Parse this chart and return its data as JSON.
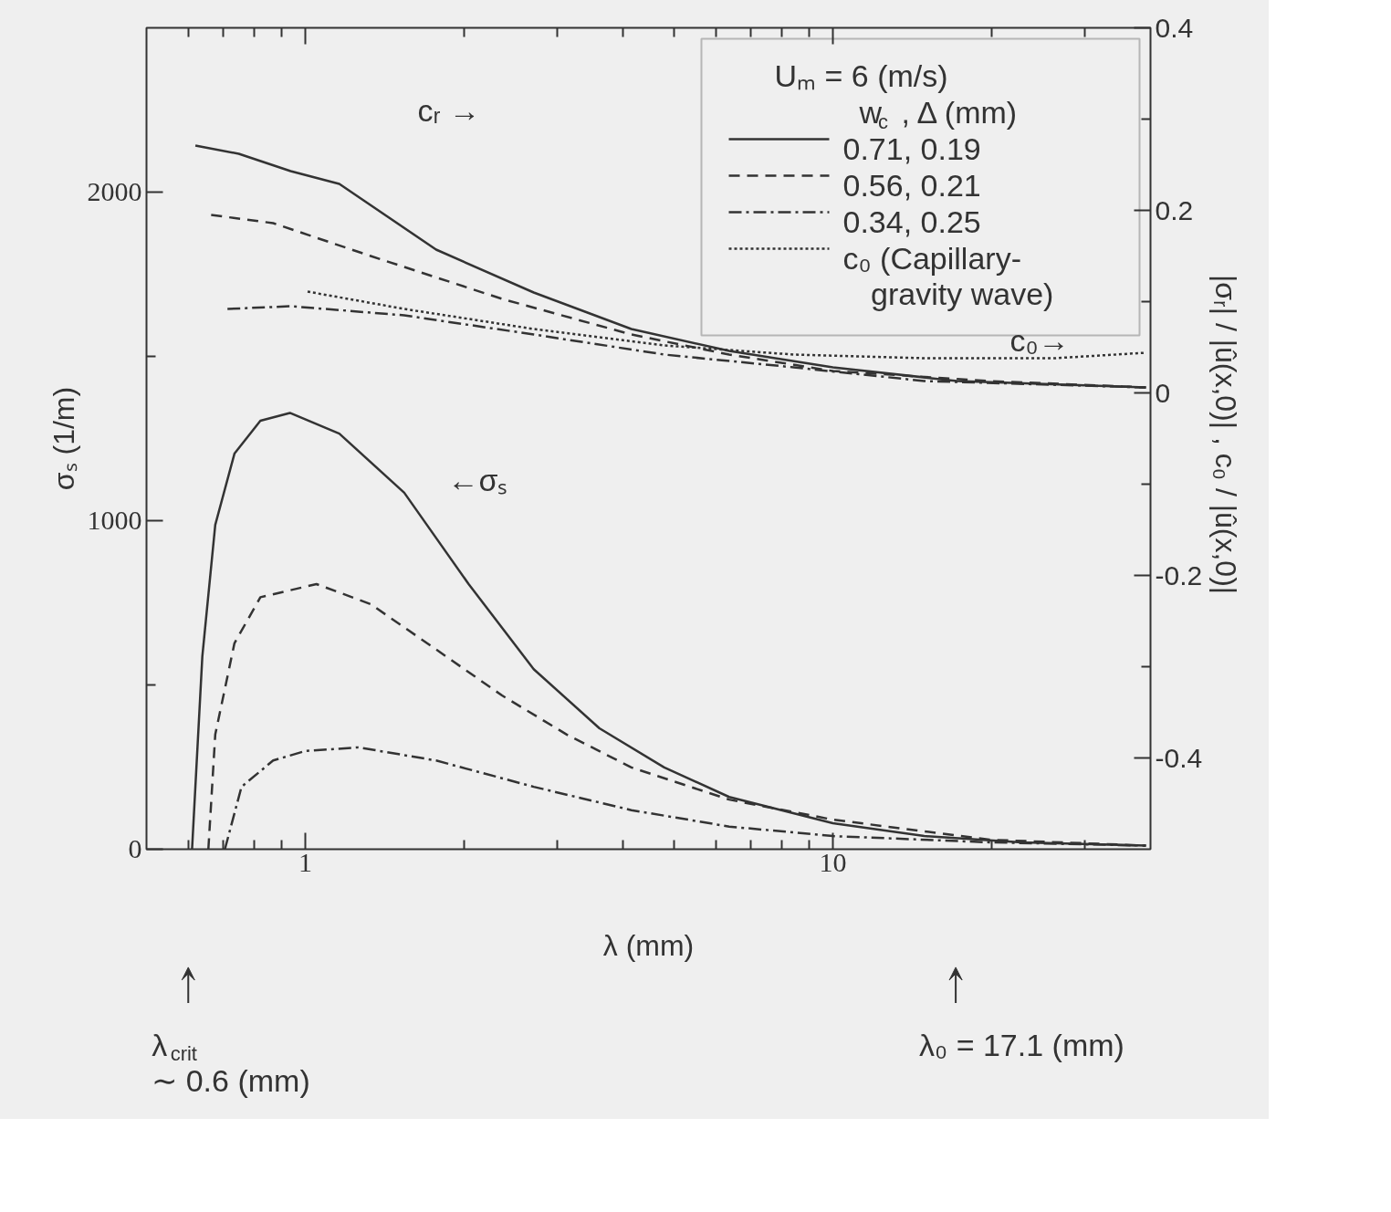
{
  "chart_data": {
    "type": "line",
    "xlabel": "λ (mm)",
    "ylabel": "σₛ (1/m)",
    "y2label": "|σᵣ| / |û(x,0)| ,  c₀ / |û(x,0)|",
    "legend_title": "Uₘ = 6 (m/s)",
    "log": "x",
    "grid": false,
    "legend": "top right",
    "xlim": [
      0.5,
      40
    ],
    "ylim": [
      0,
      2500
    ],
    "y2lim": [
      -0.5,
      0.4
    ],
    "xticks": [
      {
        "value": 0.6,
        "label": null
      },
      {
        "value": 0.7,
        "label": null
      },
      {
        "value": 0.8,
        "label": null
      },
      {
        "value": 0.9,
        "label": null
      },
      1,
      {
        "value": 2,
        "label": null
      },
      {
        "value": 3,
        "label": null
      },
      {
        "value": 4,
        "label": null
      },
      {
        "value": 5,
        "label": null
      },
      {
        "value": 6,
        "label": null
      },
      {
        "value": 7,
        "label": null
      },
      {
        "value": 8,
        "label": null
      },
      {
        "value": 9,
        "label": null
      },
      10,
      {
        "value": 20,
        "label": null
      },
      {
        "value": 30,
        "label": null
      }
    ],
    "yticks": [
      0,
      {
        "value": 500,
        "label": null
      },
      1000,
      {
        "value": 1500,
        "label": null
      },
      2000
    ],
    "y2ticks": [
      -0.4,
      {
        "value": -0.3,
        "label": null
      },
      -0.2,
      {
        "value": -0.1,
        "label": null
      },
      0,
      {
        "value": 0.1,
        "label": null
      },
      0.2,
      {
        "value": 0.3,
        "label": null
      },
      0.4
    ],
    "series": [
      {
        "name": "0.71,  0.19",
        "color": "#333333",
        "line_style": "solid",
        "x": [
          0.61,
          0.638,
          0.675,
          0.734,
          0.822,
          0.935,
          1.16,
          1.54,
          2.04,
          2.71,
          3.61,
          4.79,
          6.36,
          10.0,
          14.9,
          22.8,
          39.2
        ],
        "values": [
          0,
          587,
          987,
          1204,
          1304,
          1328,
          1265,
          1085,
          807,
          548,
          368,
          249,
          159,
          79,
          40,
          21,
          11
        ]
      },
      {
        "name": "0.56,  0.21",
        "color": "#333333",
        "line_style": "dashed",
        "x": [
          0.655,
          0.675,
          0.734,
          0.822,
          1.05,
          1.33,
          1.77,
          2.36,
          3.13,
          4.15,
          6.36,
          10.0,
          19.8,
          39.2
        ],
        "values": [
          0,
          349,
          627,
          767,
          807,
          746,
          608,
          468,
          349,
          249,
          151,
          90,
          29,
          11
        ]
      },
      {
        "name": "0.34,  0.25",
        "color": "#333333",
        "line_style": "dashdot",
        "x": [
          0.704,
          0.757,
          0.869,
          1.0,
          1.26,
          1.77,
          2.71,
          4.15,
          6.36,
          10.0,
          19.8,
          39.2
        ],
        "values": [
          0,
          190,
          270,
          299,
          310,
          270,
          190,
          119,
          69,
          40,
          21,
          11
        ]
      },
      {
        "color": "#333333",
        "line_style": "solid",
        "axis": "y2",
        "x": [
          0.619,
          0.748,
          0.938,
          1.16,
          1.77,
          2.71,
          4.15,
          6.36,
          10.0,
          17.2,
          39.2
        ],
        "values": [
          0.271,
          0.262,
          0.243,
          0.229,
          0.157,
          0.11,
          0.07,
          0.046,
          0.028,
          0.013,
          0.006
        ]
      },
      {
        "color": "#333333",
        "line_style": "dashed",
        "axis": "y2",
        "x": [
          0.663,
          0.869,
          1.33,
          2.36,
          4.15,
          6.36,
          10.0,
          19.8,
          39.2
        ],
        "values": [
          0.195,
          0.186,
          0.15,
          0.103,
          0.064,
          0.042,
          0.024,
          0.013,
          0.006
        ]
      },
      {
        "color": "#333333",
        "line_style": "dashdot",
        "axis": "y2",
        "x": [
          0.712,
          0.938,
          1.54,
          2.71,
          4.79,
          8.43,
          14.9,
          39.2
        ],
        "values": [
          0.092,
          0.095,
          0.085,
          0.064,
          0.042,
          0.028,
          0.013,
          0.006
        ]
      },
      {
        "name": "c₀ (Capillary-gravity wave)",
        "color": "#333333",
        "line_style": "dotted",
        "axis": "y2",
        "x": [
          1.01,
          1.54,
          2.71,
          4.79,
          8.43,
          14.9,
          26.3,
          39.2
        ],
        "values": [
          0.111,
          0.092,
          0.07,
          0.052,
          0.042,
          0.038,
          0.038,
          0.044
        ]
      }
    ],
    "annotations": [
      "cᵣ →",
      "c₀→",
      "←σₛ",
      "w$_{c}$ ,  Δ (mm)",
      "λ$_{crit}$\n∼ 0.6 (mm)",
      "λ₀ = 17.1 (mm)"
    ]
  }
}
